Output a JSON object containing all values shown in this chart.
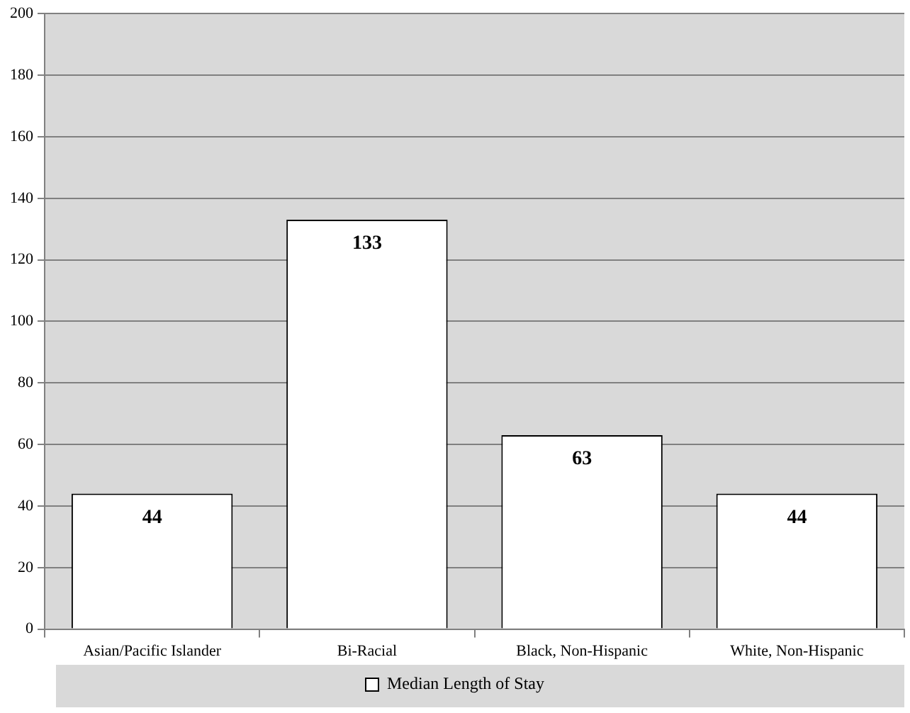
{
  "chart_data": {
    "type": "bar",
    "categories": [
      "Asian/Pacific Islander",
      "Bi-Racial",
      "Black, Non-Hispanic",
      "White, Non-Hispanic"
    ],
    "series": [
      {
        "name": "Median Length of Stay",
        "color": "#ffffff",
        "values": [
          44,
          133,
          63,
          44
        ]
      }
    ],
    "ylim": [
      0,
      200
    ],
    "yticks": [
      0,
      20,
      40,
      60,
      80,
      100,
      120,
      140,
      160,
      180,
      200
    ],
    "grid": "y",
    "legend": "bottom",
    "data_labels": true
  }
}
